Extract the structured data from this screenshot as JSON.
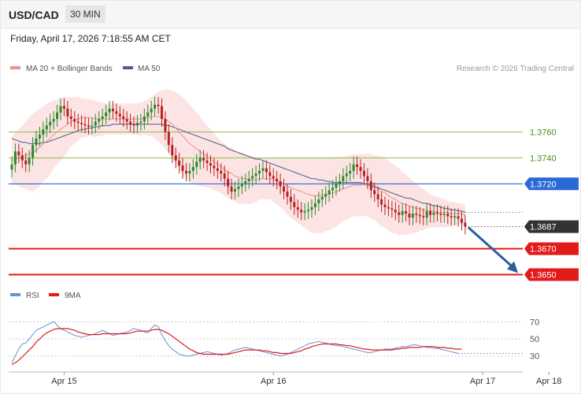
{
  "header": {
    "symbol": "USD/CAD",
    "timeframe": "30 MIN",
    "datetime": "Friday, April 17, 2026 7:18:55 AM CET"
  },
  "legend": {
    "ma20_label": "MA 20 + Bollinger Bands",
    "ma50_label": "MA 50",
    "credit": "Research © 2026 Trading Central",
    "rsi_label": "RSI",
    "rsi_ma_label": "9MA"
  },
  "colors": {
    "up": "#2b8a2b",
    "down": "#b52222",
    "ma20": "#f08f8f",
    "bb_fill": "#fde1e1",
    "ma50": "#4a5e8c",
    "resistance": "#8cbf4a",
    "pivot": "#2a6ad6",
    "support": "#e31a1a",
    "rsi": "#6a8fd8",
    "rsi_ma": "#e31a1a",
    "arrow": "#2b5f9e",
    "price_box": "#333333"
  },
  "chart_data": [
    {
      "type": "candlestick",
      "x_ticks": [
        "Apr 15",
        "Apr 16",
        "Apr 17",
        "Apr 18"
      ],
      "x_tick_index": [
        15,
        75,
        135,
        154
      ],
      "ylim": [
        1.3643,
        1.3801
      ],
      "current_price": "1.3687",
      "levels": [
        {
          "label": "1.3760",
          "value": 1.376,
          "role": "resistance"
        },
        {
          "label": "1.3740",
          "value": 1.374,
          "role": "resistance"
        },
        {
          "label": "1.3720",
          "value": 1.372,
          "role": "pivot"
        },
        {
          "label": "1.3670",
          "value": 1.367,
          "role": "support"
        },
        {
          "label": "1.3650",
          "value": 1.365,
          "role": "support"
        }
      ],
      "close": [
        1.3735,
        1.3745,
        1.3742,
        1.3738,
        1.3735,
        1.374,
        1.375,
        1.3755,
        1.3758,
        1.3762,
        1.3765,
        1.3768,
        1.377,
        1.3775,
        1.378,
        1.3778,
        1.3772,
        1.377,
        1.3768,
        1.3767,
        1.3766,
        1.3765,
        1.3764,
        1.3765,
        1.3768,
        1.377,
        1.3772,
        1.3775,
        1.3778,
        1.3776,
        1.3774,
        1.3772,
        1.377,
        1.3768,
        1.3766,
        1.3765,
        1.3767,
        1.3768,
        1.3772,
        1.3775,
        1.3778,
        1.3781,
        1.378,
        1.377,
        1.376,
        1.375,
        1.3742,
        1.3738,
        1.3734,
        1.373,
        1.3728,
        1.373,
        1.3733,
        1.3737,
        1.374,
        1.3738,
        1.3736,
        1.3734,
        1.3732,
        1.373,
        1.3728,
        1.3724,
        1.3718,
        1.3714,
        1.3716,
        1.3718,
        1.372,
        1.3722,
        1.3724,
        1.3726,
        1.3728,
        1.373,
        1.3732,
        1.3729,
        1.3726,
        1.3724,
        1.3722,
        1.3718,
        1.3714,
        1.371,
        1.3706,
        1.3702,
        1.37,
        1.3698,
        1.3699,
        1.37,
        1.3702,
        1.3705,
        1.3708,
        1.371,
        1.3712,
        1.3715,
        1.3717,
        1.372,
        1.3722,
        1.3726,
        1.3728,
        1.373,
        1.3735,
        1.3733,
        1.373,
        1.3726,
        1.3722,
        1.3715,
        1.3712,
        1.3708,
        1.3704,
        1.3702,
        1.3701,
        1.37,
        1.3698,
        1.3696,
        1.3699,
        1.3697,
        1.3694,
        1.3697,
        1.3696,
        1.3695,
        1.3694,
        1.3699,
        1.3696,
        1.3698,
        1.3697,
        1.3696,
        1.3697,
        1.3695,
        1.3694,
        1.3695,
        1.3693,
        1.369,
        1.3687
      ],
      "ma20": [
        1.3738,
        1.3739,
        1.374,
        1.3741,
        1.3742,
        1.3743,
        1.3744,
        1.3746,
        1.3748,
        1.3751,
        1.3753,
        1.3755,
        1.3758,
        1.376,
        1.3762,
        1.3764,
        1.3766,
        1.3768,
        1.3769,
        1.377,
        1.3771,
        1.3771,
        1.3771,
        1.3771,
        1.377,
        1.377,
        1.377,
        1.377,
        1.377,
        1.377,
        1.377,
        1.377,
        1.377,
        1.377,
        1.377,
        1.377,
        1.377,
        1.377,
        1.3771,
        1.3771,
        1.3772,
        1.3772,
        1.3772,
        1.3771,
        1.377,
        1.3768,
        1.3766,
        1.3763,
        1.376,
        1.3757,
        1.3754,
        1.3751,
        1.3749,
        1.3747,
        1.3745,
        1.3743,
        1.3741,
        1.3739,
        1.3737,
        1.3735,
        1.3733,
        1.3731,
        1.3729,
        1.3728,
        1.3726,
        1.3725,
        1.3724,
        1.3724,
        1.3723,
        1.3723,
        1.3723,
        1.3724,
        1.3724,
        1.3724,
        1.3724,
        1.3723,
        1.3722,
        1.3721,
        1.372,
        1.3718,
        1.3717,
        1.3716,
        1.3715,
        1.3714,
        1.3713,
        1.3712,
        1.3711,
        1.3711,
        1.3711,
        1.3711,
        1.3712,
        1.3712,
        1.3713,
        1.3714,
        1.3715,
        1.3716,
        1.3717,
        1.3718,
        1.3719,
        1.3719,
        1.3719,
        1.3719,
        1.3719,
        1.3718,
        1.3717,
        1.3716,
        1.3714,
        1.3713,
        1.3711,
        1.3709,
        1.3708,
        1.3706,
        1.3705,
        1.3704,
        1.3703,
        1.3702,
        1.3701,
        1.3701,
        1.37,
        1.37,
        1.3699,
        1.3699,
        1.3698,
        1.3698,
        1.3698,
        1.3698,
        1.3697,
        1.3697,
        1.3697,
        1.3697,
        1.3696
      ],
      "bb_upper": [
        1.3757,
        1.3759,
        1.3762,
        1.3765,
        1.3768,
        1.3771,
        1.3774,
        1.3776,
        1.3778,
        1.378,
        1.3782,
        1.3783,
        1.3784,
        1.3785,
        1.3786,
        1.3787,
        1.3787,
        1.3787,
        1.3787,
        1.3787,
        1.3786,
        1.3786,
        1.3785,
        1.3785,
        1.3784,
        1.3783,
        1.3783,
        1.3782,
        1.3782,
        1.3782,
        1.3782,
        1.3782,
        1.3782,
        1.3782,
        1.3782,
        1.3782,
        1.3782,
        1.3783,
        1.3784,
        1.3785,
        1.3787,
        1.3789,
        1.3791,
        1.3792,
        1.3793,
        1.3793,
        1.3792,
        1.3791,
        1.3789,
        1.3787,
        1.3784,
        1.3781,
        1.3778,
        1.3775,
        1.3772,
        1.3768,
        1.3765,
        1.3762,
        1.3759,
        1.3756,
        1.3753,
        1.3751,
        1.3749,
        1.3748,
        1.3746,
        1.3745,
        1.3744,
        1.3743,
        1.3742,
        1.3741,
        1.374,
        1.374,
        1.374,
        1.374,
        1.374,
        1.374,
        1.374,
        1.374,
        1.374,
        1.374,
        1.374,
        1.374,
        1.374,
        1.374,
        1.374,
        1.374,
        1.374,
        1.374,
        1.374,
        1.374,
        1.374,
        1.374,
        1.374,
        1.3741,
        1.3741,
        1.3741,
        1.3742,
        1.3742,
        1.3743,
        1.3743,
        1.3743,
        1.3743,
        1.3743,
        1.3743,
        1.3742,
        1.3742,
        1.3741,
        1.374,
        1.3738,
        1.3736,
        1.3734,
        1.3732,
        1.3729,
        1.3727,
        1.3725,
        1.3722,
        1.372,
        1.3718,
        1.3716,
        1.3714,
        1.3712,
        1.3711,
        1.371,
        1.3709,
        1.3708,
        1.3707,
        1.3706,
        1.3706,
        1.3705,
        1.3705,
        1.3704
      ],
      "bb_lower": [
        1.3719,
        1.3719,
        1.3718,
        1.3717,
        1.3716,
        1.3715,
        1.3714,
        1.3716,
        1.3718,
        1.3722,
        1.3724,
        1.3727,
        1.3732,
        1.3735,
        1.3738,
        1.3741,
        1.3745,
        1.3749,
        1.3751,
        1.3753,
        1.3756,
        1.3756,
        1.3757,
        1.3757,
        1.3756,
        1.3757,
        1.3757,
        1.3758,
        1.3758,
        1.3758,
        1.3758,
        1.3758,
        1.3758,
        1.3758,
        1.3758,
        1.3758,
        1.3758,
        1.3757,
        1.3758,
        1.3757,
        1.3757,
        1.3755,
        1.3753,
        1.375,
        1.3747,
        1.3743,
        1.374,
        1.3735,
        1.3731,
        1.3727,
        1.3724,
        1.3721,
        1.372,
        1.3719,
        1.3718,
        1.3718,
        1.3717,
        1.3716,
        1.3715,
        1.3714,
        1.3713,
        1.3711,
        1.3709,
        1.3708,
        1.3706,
        1.3705,
        1.3704,
        1.3705,
        1.3704,
        1.3705,
        1.3706,
        1.3708,
        1.3708,
        1.3708,
        1.3708,
        1.3706,
        1.3704,
        1.3702,
        1.37,
        1.3696,
        1.3694,
        1.3692,
        1.369,
        1.3688,
        1.3686,
        1.3684,
        1.3682,
        1.3682,
        1.3682,
        1.3682,
        1.3684,
        1.3684,
        1.3686,
        1.3687,
        1.3689,
        1.3691,
        1.3692,
        1.3694,
        1.3695,
        1.3695,
        1.3695,
        1.3695,
        1.3695,
        1.3693,
        1.3692,
        1.369,
        1.3687,
        1.3686,
        1.3684,
        1.3682,
        1.3682,
        1.368,
        1.3681,
        1.3681,
        1.3681,
        1.3682,
        1.3682,
        1.3684,
        1.3684,
        1.3686,
        1.3686,
        1.3687,
        1.3686,
        1.3687,
        1.3686,
        1.3687,
        1.3686,
        1.3688,
        1.3688,
        1.3689,
        1.3688
      ],
      "ma50": [
        1.3755,
        1.3754,
        1.3753,
        1.3752,
        1.3752,
        1.3751,
        1.3751,
        1.3751,
        1.3751,
        1.3752,
        1.3752,
        1.3753,
        1.3754,
        1.3755,
        1.3756,
        1.3757,
        1.3758,
        1.3759,
        1.376,
        1.3761,
        1.3762,
        1.3762,
        1.3763,
        1.3763,
        1.3764,
        1.3764,
        1.3765,
        1.3765,
        1.3765,
        1.3766,
        1.3766,
        1.3766,
        1.3766,
        1.3766,
        1.3766,
        1.3766,
        1.3766,
        1.3766,
        1.3766,
        1.3766,
        1.3766,
        1.3766,
        1.3766,
        1.3766,
        1.3765,
        1.3765,
        1.3764,
        1.3763,
        1.3762,
        1.3761,
        1.376,
        1.3759,
        1.3758,
        1.3757,
        1.3756,
        1.3755,
        1.3754,
        1.3753,
        1.3752,
        1.3751,
        1.375,
        1.3749,
        1.3747,
        1.3746,
        1.3745,
        1.3744,
        1.3743,
        1.3742,
        1.3741,
        1.374,
        1.3739,
        1.3739,
        1.3738,
        1.3737,
        1.3736,
        1.3735,
        1.3734,
        1.3733,
        1.3732,
        1.3731,
        1.373,
        1.3729,
        1.3728,
        1.3727,
        1.3726,
        1.3725,
        1.3724,
        1.3724,
        1.3723,
        1.3723,
        1.3722,
        1.3722,
        1.3721,
        1.3721,
        1.3721,
        1.3721,
        1.3721,
        1.3721,
        1.3721,
        1.3721,
        1.3721,
        1.372,
        1.372,
        1.3719,
        1.3718,
        1.3717,
        1.3716,
        1.3715,
        1.3714,
        1.3713,
        1.3712,
        1.3711,
        1.371,
        1.3709,
        1.3709,
        1.3708,
        1.3707,
        1.3706,
        1.3705,
        1.3705,
        1.3704,
        1.3703,
        1.3703,
        1.3702,
        1.3701,
        1.3701,
        1.37,
        1.37,
        1.3699,
        1.3699,
        1.3698
      ]
    },
    {
      "type": "line",
      "ylim": [
        15,
        85
      ],
      "y_ticks": [
        70,
        50,
        30
      ],
      "y_tick_labels": [
        "70",
        "50",
        "30"
      ],
      "rsi": [
        22,
        30,
        38,
        44,
        45,
        50,
        55,
        60,
        62,
        64,
        66,
        68,
        70,
        66,
        62,
        60,
        58,
        56,
        54,
        53,
        52,
        53,
        54,
        55,
        56,
        58,
        60,
        58,
        56,
        54,
        55,
        56,
        57,
        58,
        60,
        62,
        61,
        60,
        58,
        57,
        62,
        66,
        64,
        55,
        48,
        42,
        38,
        35,
        32,
        31,
        30,
        30,
        31,
        32,
        33,
        34,
        35,
        34,
        33,
        32,
        31,
        32,
        33,
        35,
        37,
        38,
        39,
        40,
        39,
        38,
        37,
        36,
        35,
        34,
        33,
        32,
        31,
        30,
        31,
        32,
        34,
        36,
        38,
        40,
        42,
        44,
        45,
        46,
        47,
        46,
        45,
        44,
        43,
        42,
        42,
        41,
        40,
        39,
        38,
        37,
        36,
        35,
        34,
        34,
        35,
        36,
        37,
        38,
        38,
        38,
        39,
        40,
        41,
        41,
        42,
        43,
        43,
        42,
        41,
        40,
        40,
        39,
        39,
        38,
        37,
        36,
        35,
        34,
        33
      ],
      "rsi_ma": [
        20,
        22,
        25,
        29,
        33,
        37,
        41,
        46,
        50,
        54,
        57,
        59,
        61,
        62,
        62,
        62,
        62,
        61,
        60,
        58,
        57,
        56,
        55,
        55,
        55,
        55,
        56,
        56,
        56,
        56,
        56,
        56,
        56,
        56,
        57,
        58,
        59,
        59,
        59,
        59,
        60,
        61,
        61,
        60,
        58,
        56,
        53,
        50,
        47,
        44,
        41,
        38,
        36,
        34,
        33,
        32,
        32,
        32,
        32,
        32,
        32,
        32,
        32,
        33,
        34,
        35,
        36,
        37,
        37,
        37,
        37,
        37,
        36,
        36,
        35,
        34,
        34,
        33,
        33,
        33,
        33,
        34,
        35,
        36,
        38,
        39,
        41,
        42,
        43,
        44,
        44,
        44,
        44,
        44,
        43,
        43,
        42,
        42,
        41,
        40,
        39,
        38,
        38,
        37,
        37,
        37,
        37,
        37,
        37,
        37,
        38,
        38,
        39,
        39,
        40,
        40,
        40,
        40,
        41,
        41,
        41,
        41,
        40,
        40,
        40,
        39,
        39,
        38,
        38,
        38
      ]
    }
  ]
}
